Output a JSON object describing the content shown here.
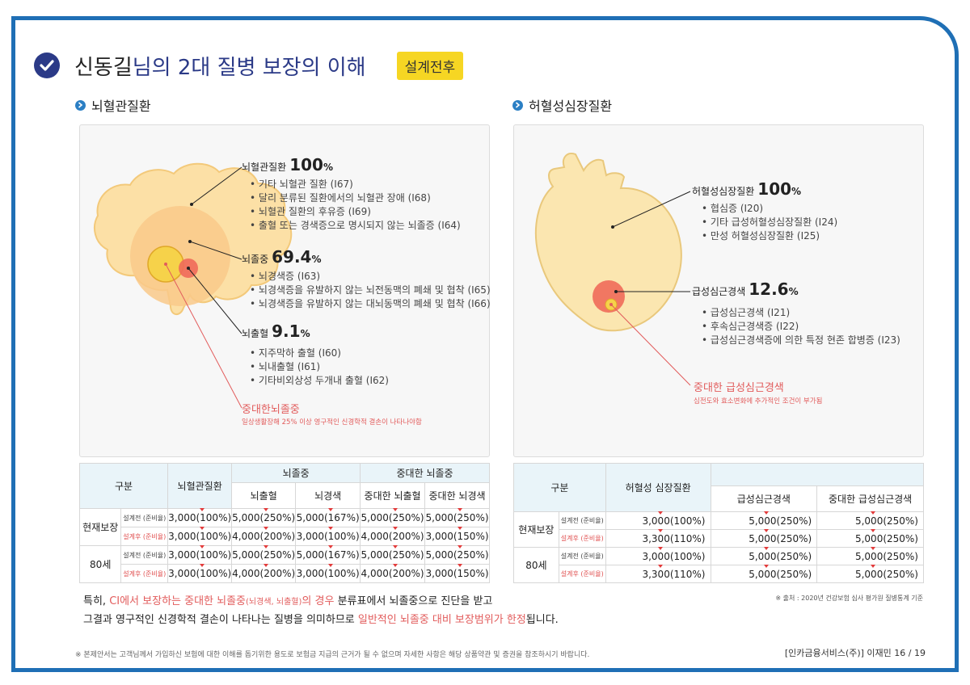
{
  "header": {
    "name": "신동길",
    "title_suffix": "님의 2대 질병 보장의 이해",
    "badge": "설계전후"
  },
  "left": {
    "section": "뇌혈관질환",
    "groups": [
      {
        "title": "뇌혈관질환",
        "pct_num": "100",
        "pct_sign": "%",
        "items": [
          "기타 뇌혈관 질환 (I67)",
          "달리 분류된 질환에서의 뇌혈관 장애 (I68)",
          "뇌혈관 질환의 후유증 (I69)",
          "출혈 또는 경색증으로 명시되지 않는 뇌졸증 (I64)"
        ]
      },
      {
        "title": "뇌졸중",
        "pct_num": "69.4",
        "pct_sign": "%",
        "items": [
          "뇌경색증 (I63)",
          "뇌경색증을 유발하지 않는 뇌전동맥의 폐쇄 및 협착 (I65)",
          "뇌경색증을 유발하지 않는 대뇌동맥의 폐쇄 및 협착 (I66)"
        ]
      },
      {
        "title": "뇌출혈",
        "pct_num": "9.1",
        "pct_sign": "%",
        "items": [
          "지주막하 출혈 (I60)",
          "뇌내출혈 (I61)",
          "기타비외상성 두개내 출혈 (I62)"
        ]
      }
    ],
    "severe": {
      "title": "중대한뇌졸중",
      "desc": "일상생활장해 25% 이상 영구적인 신경학적 결손이 나타나야함"
    }
  },
  "right": {
    "section": "허혈성심장질환",
    "groups": [
      {
        "title": "허혈성심장질환",
        "pct_num": "100",
        "pct_sign": "%",
        "items": [
          "협심증 (I20)",
          "기타 급성허혈성심장질환 (I24)",
          "만성 허혈성심장질환 (I25)"
        ]
      },
      {
        "title": "급성심근경색",
        "pct_num": "12.6",
        "pct_sign": "%",
        "items": [
          "급성심근경색 (I21)",
          "후속심근경색증 (I22)",
          "급성심근경색증에 의한 특정 현존 합병증 (I23)"
        ]
      }
    ],
    "severe": {
      "title": "중대한 급성심근경색",
      "desc": "심전도와 효소변화에 추가적인 조건이 부가됨"
    }
  },
  "table_left": {
    "h_gubun": "구분",
    "h_col1": "뇌혈관질환",
    "h_grp1": "뇌졸중",
    "h_grp2": "중대한 뇌졸중",
    "h_sub": [
      "뇌출혈",
      "뇌경색",
      "중대한 뇌출혈",
      "중대한 뇌경색"
    ],
    "row_groups": [
      {
        "label": "현재보장",
        "rows": [
          {
            "sub": "설계전 (준비율)",
            "vals": [
              "3,000(100%)",
              "5,000(250%)",
              "5,000(167%)",
              "5,000(250%)",
              "5,000(250%)"
            ]
          },
          {
            "sub": "설계후 (준비율)",
            "vals": [
              "3,000(100%)",
              "4,000(200%)",
              "3,000(100%)",
              "4,000(200%)",
              "3,000(150%)"
            ]
          }
        ]
      },
      {
        "label": "80세",
        "rows": [
          {
            "sub": "설계전 (준비율)",
            "vals": [
              "3,000(100%)",
              "5,000(250%)",
              "5,000(167%)",
              "5,000(250%)",
              "5,000(250%)"
            ]
          },
          {
            "sub": "설계후 (준비율)",
            "vals": [
              "3,000(100%)",
              "4,000(200%)",
              "3,000(100%)",
              "4,000(200%)",
              "3,000(150%)"
            ]
          }
        ]
      }
    ]
  },
  "table_right": {
    "h_gubun": "구분",
    "h_col1": "허혈성 심장질환",
    "h_sub": [
      "급성심근경색",
      "중대한 급성심근경색"
    ],
    "row_groups": [
      {
        "label": "현재보장",
        "rows": [
          {
            "sub": "설계전 (준비율)",
            "vals": [
              "3,000(100%)",
              "5,000(250%)",
              "5,000(250%)"
            ]
          },
          {
            "sub": "설계후 (준비율)",
            "vals": [
              "3,300(110%)",
              "5,000(250%)",
              "5,000(250%)"
            ]
          }
        ]
      },
      {
        "label": "80세",
        "rows": [
          {
            "sub": "설계전 (준비율)",
            "vals": [
              "3,000(100%)",
              "5,000(250%)",
              "5,000(250%)"
            ]
          },
          {
            "sub": "설계후 (준비율)",
            "vals": [
              "3,300(110%)",
              "5,000(250%)",
              "5,000(250%)"
            ]
          }
        ]
      }
    ]
  },
  "note": {
    "l1_a": "특히, ",
    "l1_b": "CI에서 보장하는 중대한 뇌졸중",
    "l1_c": "(뇌경색, 뇌출혈)",
    "l1_d": "의 경우 ",
    "l1_e": "분류표에서 뇌졸중으로 진단을 받고",
    "l2_a": "그결과 영구적인 신경학적 결손이 나타나는 질병을 의미하므로 ",
    "l2_b": "일반적인 뇌졸중 대비 보장범위가 한정",
    "l2_c": "됩니다."
  },
  "source": "※ 출처 : 2020년 건강보험 심사 평가원 질병통계 기준",
  "footer": {
    "disclaimer": "※ 본제안서는 고객님께서 가입하신 보험에 대한 이해를 돕기위한 용도로 보험금 지급의 근거가 될 수 없으며 자세한 사항은 해당 상품약관 및 증권을 참조하시기 바랍니다.",
    "company": "[인카금융서비스(주)] 이재민",
    "page": "16 / 19"
  },
  "colors": {
    "navy": "#2b3a87",
    "blue": "#1f6fb5",
    "yellow": "#f6d623",
    "red": "#e25c5c"
  }
}
